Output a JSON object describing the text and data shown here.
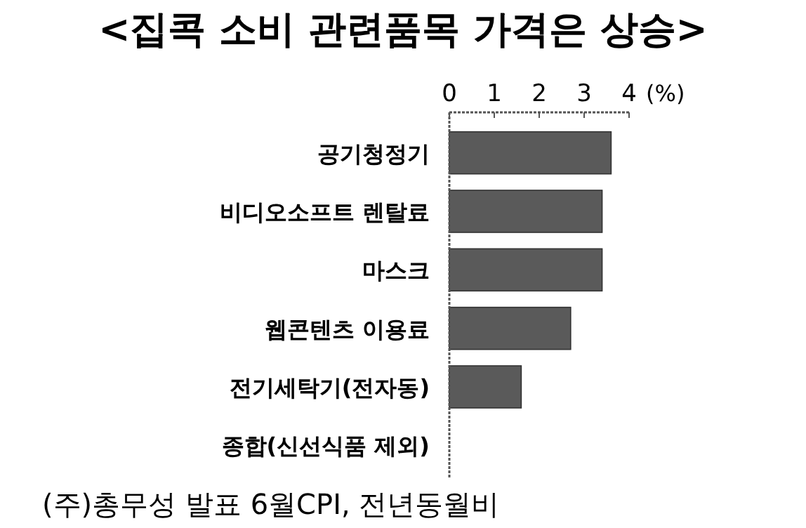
{
  "chart_data": {
    "type": "bar",
    "orientation": "horizontal",
    "title": "<집콕 소비 관련품목 가격은 상승>",
    "xlabel": "(%)",
    "categories": [
      "공기청정기",
      "비디오소프트 렌탈료",
      "마스크",
      "웹콘텐츠 이용료",
      "전기세탁기(전자동)",
      "종합(신선식품 제외)"
    ],
    "values": [
      3.6,
      3.4,
      3.4,
      2.7,
      1.6,
      0
    ],
    "color": "#5a5a5a",
    "xlim": [
      0,
      4
    ],
    "xticks": [
      0,
      1,
      2,
      3,
      4
    ],
    "grid": false,
    "annotations": [
      "(주)총무성 발표 6월CPI, 전년동월비"
    ]
  }
}
